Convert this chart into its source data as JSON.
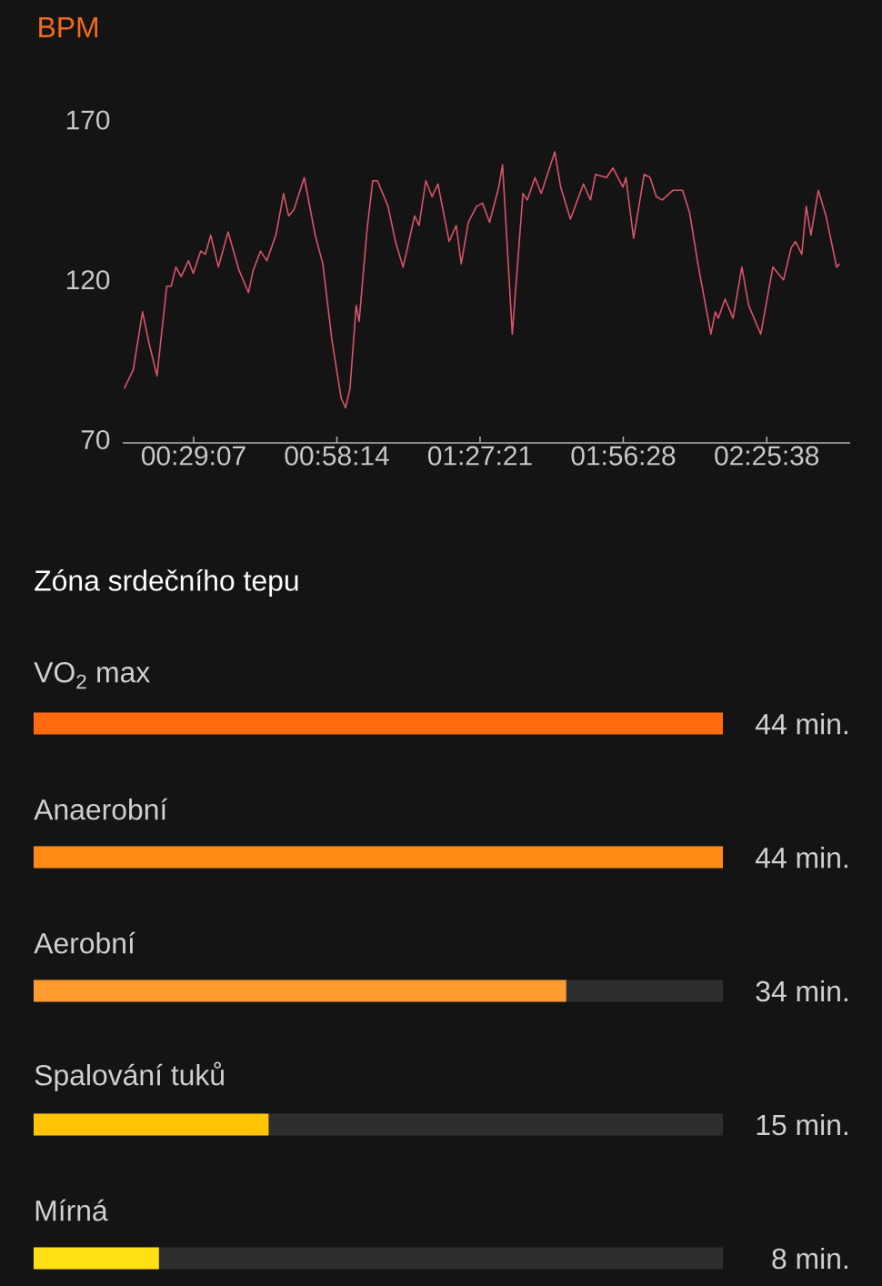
{
  "chart_data": [
    {
      "type": "line",
      "ylabel": "BPM",
      "x": [
        0.25,
        0.281,
        0.312,
        0.332,
        0.361,
        0.394,
        0.409,
        0.425,
        0.443,
        0.468,
        0.484,
        0.509,
        0.525,
        0.543,
        0.569,
        0.602,
        0.639,
        0.671,
        0.687,
        0.712,
        0.733,
        0.764,
        0.79,
        0.807,
        0.825,
        0.86,
        0.897,
        0.923,
        0.954,
        0.985,
        1.0,
        1.015,
        1.036,
        1.046,
        1.072,
        1.092,
        1.108,
        1.144,
        1.169,
        1.195,
        1.234,
        1.249,
        1.272,
        1.293,
        1.313,
        1.351,
        1.375,
        1.392,
        1.416,
        1.444,
        1.464,
        1.488,
        1.519,
        1.532,
        1.565,
        1.601,
        1.616,
        1.642,
        1.663,
        1.709,
        1.729,
        1.762,
        1.806,
        1.83,
        1.847,
        1.884,
        1.906,
        1.94,
        1.95,
        1.976,
        2.012,
        2.032,
        2.053,
        2.073,
        2.109,
        2.142,
        2.166,
        2.194,
        2.238,
        2.253,
        2.263,
        2.286,
        2.313,
        2.343,
        2.366,
        2.407,
        2.448,
        2.484,
        2.51,
        2.525,
        2.546,
        2.561,
        2.577,
        2.602,
        2.628,
        2.664,
        2.674
      ],
      "series": [
        {
          "color": "#d9546b",
          "values": [
            86,
            92,
            110,
            101,
            90,
            118,
            118,
            124,
            121,
            126,
            122,
            129,
            128,
            134,
            124,
            135,
            123,
            116,
            123,
            129,
            126,
            134,
            147,
            140,
            142,
            152,
            134,
            125,
            101,
            83,
            80,
            86,
            112,
            107,
            135,
            151,
            151,
            143,
            132,
            124,
            140,
            137,
            151,
            146,
            150,
            132,
            137,
            125,
            138,
            143,
            144,
            138,
            149,
            156,
            103,
            147,
            145,
            152,
            147,
            160,
            149,
            139,
            150,
            145,
            153,
            152,
            155,
            149,
            152,
            133,
            153,
            152,
            146,
            145,
            148,
            148,
            141,
            125,
            103,
            110,
            108,
            114,
            108,
            124,
            112,
            103,
            124,
            120,
            130,
            132,
            128,
            143,
            134,
            148,
            140,
            124,
            125
          ]
        }
      ],
      "xlim": [
        0.245,
        2.71
      ],
      "ylim": [
        69,
        170
      ],
      "xticks": [
        {
          "value": 0.4853,
          "label": "00:29:07"
        },
        {
          "value": 0.9706,
          "label": "00:58:14"
        },
        {
          "value": 1.4558,
          "label": "01:27:21"
        },
        {
          "value": 1.9411,
          "label": "01:56:28"
        },
        {
          "value": 2.4272,
          "label": "02:25:38"
        }
      ],
      "yticks": [
        70,
        120,
        170
      ]
    },
    {
      "type": "bar",
      "orientation": "horizontal",
      "title": "Zóna srdečního tepu",
      "categories": [
        "VO$_{2}$ max",
        "Anaerobní",
        "Aerobní",
        "Spalování tuků",
        "Mírná"
      ],
      "values": [
        44,
        44,
        34,
        15,
        8
      ],
      "colors": [
        "#ff6a0f",
        "#ff8a14",
        "#ff9a2e",
        "#ffc505",
        "#ffe014"
      ],
      "value_labels": [
        "44 min.",
        "44 min.",
        "34 min.",
        "15 min.",
        "8 min."
      ],
      "xlim": [
        0,
        44
      ],
      "tick_labels": "y"
    }
  ]
}
